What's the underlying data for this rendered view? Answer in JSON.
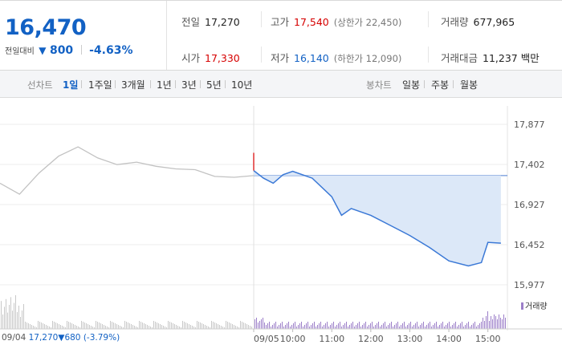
{
  "summary": {
    "current_price": "16,470",
    "change_label": "전일대비",
    "change_arrow": "▼",
    "change_value": "800",
    "change_percent": "-4.63%",
    "prev_close": {
      "label": "전일",
      "value": "17,270"
    },
    "open": {
      "label": "시가",
      "value": "17,330"
    },
    "high": {
      "label": "고가",
      "value": "17,540",
      "sub": "(상한가 22,450)"
    },
    "low": {
      "label": "저가",
      "value": "16,140",
      "sub": "(하한가 12,090)"
    },
    "volume": {
      "label": "거래량",
      "value": "677,965"
    },
    "trading_value": {
      "label": "거래대금",
      "value": "11,237 백만"
    }
  },
  "toolbar": {
    "line_chart_label": "선차트",
    "periods": [
      "1일",
      "1주일",
      "3개월",
      "1년",
      "3년",
      "5년",
      "10년"
    ],
    "active_period": "1일",
    "candle_chart_label": "봉차트",
    "candle_periods": [
      "일봉",
      "주봉",
      "월봉"
    ]
  },
  "chart_data": {
    "type": "line",
    "title": "",
    "y_ticks": [
      "17,877",
      "17,402",
      "16,927",
      "16,452",
      "15,977"
    ],
    "ylim": [
      15977,
      17877
    ],
    "x_ticks": [
      "09/04",
      "09/05",
      "10:00",
      "11:00",
      "12:00",
      "13:00",
      "14:00",
      "15:00"
    ],
    "reference_price": 17270,
    "previous_day": {
      "date": "09/04",
      "close": "17,270",
      "arrow": "▼",
      "change": "680",
      "change_percent": "(-3.79%)"
    },
    "volume_legend": "거래량",
    "series": [
      {
        "name": "",
        "x": [
          "09/04 09:00",
          "09/04 09:30",
          "09/04 10:00",
          "09/04 10:30",
          "09/04 11:00",
          "09/04 11:30",
          "09/04 12:00",
          "09/04 12:30",
          "09/04 13:00",
          "09/04 13:30",
          "09/04 14:00",
          "09/04 14:30",
          "09/04 15:00",
          "09/04 15:30"
        ],
        "values": [
          17180,
          17050,
          17300,
          17500,
          17610,
          17480,
          17400,
          17430,
          17380,
          17350,
          17340,
          17260,
          17250,
          17270
        ]
      },
      {
        "name": "",
        "x": [
          "09/05 09:00",
          "09/05 09:15",
          "09/05 09:30",
          "09/05 09:45",
          "09/05 10:00",
          "09/05 10:30",
          "09/05 11:00",
          "09/05 11:15",
          "09/05 11:30",
          "09/05 12:00",
          "09/05 12:30",
          "09/05 13:00",
          "09/05 13:30",
          "09/05 14:00",
          "09/05 14:30",
          "09/05 14:50",
          "09/05 15:00",
          "09/05 15:20"
        ],
        "values": [
          17330,
          17240,
          17180,
          17280,
          17320,
          17240,
          17020,
          16800,
          16880,
          16800,
          16680,
          16560,
          16420,
          16260,
          16200,
          16240,
          16480,
          16470
        ]
      }
    ],
    "volume_colors": {
      "day1": "#c8c8c8",
      "day2": "#9c7fc9"
    },
    "colors": {
      "day1_line": "#c2c2c2",
      "day2_line": "#3a78d6",
      "fill": "#dce8f8",
      "ref_line": "#4a7bd0"
    }
  }
}
